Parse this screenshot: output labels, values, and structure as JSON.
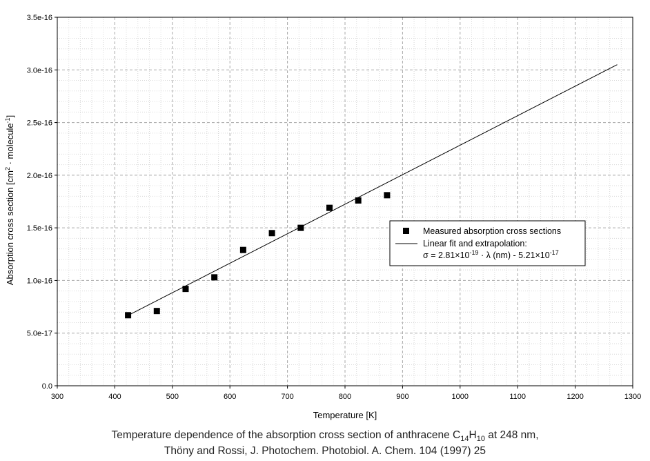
{
  "chart_data": {
    "type": "scatter",
    "xlabel": "Temperature [K]",
    "ylabel": {
      "prefix": "Absorption cross section [cm",
      "sup1": "2",
      "mid": " · molecule",
      "sup2": "-1",
      "suffix": "]"
    },
    "xlim": [
      300,
      1300
    ],
    "ylim": [
      0,
      3.5e-16
    ],
    "xticks": [
      "300",
      "400",
      "500",
      "600",
      "700",
      "800",
      "900",
      "1000",
      "1100",
      "1200",
      "1300"
    ],
    "yticks": [
      "0.0",
      "5.0e-17",
      "1.0e-16",
      "1.5e-16",
      "2.0e-16",
      "2.5e-16",
      "3.0e-16",
      "3.5e-16"
    ],
    "grid": true,
    "legend_position": "right",
    "series": [
      {
        "name": "Measured absorption cross sections",
        "marker": "square",
        "color": "#000000",
        "x": [
          423,
          473,
          523,
          573,
          623,
          673,
          723,
          773,
          823,
          873
        ],
        "y": [
          6.7e-17,
          7.1e-17,
          9.2e-17,
          1.03e-16,
          1.29e-16,
          1.45e-16,
          1.5e-16,
          1.69e-16,
          1.76e-16,
          1.81e-16
        ]
      },
      {
        "name_line1": "Linear fit and extrapolation:",
        "eq": {
          "sigma": "σ",
          "a": " = 2.81×10",
          "a_sup": "-19",
          "b": " · ",
          "lambda": "λ",
          "c": " (nm) - 5.21×10",
          "c_sup": "-17"
        },
        "line": true,
        "color": "#000000",
        "x": [
          423,
          1273
        ],
        "y": [
          6.68e-17,
          3.05e-16
        ]
      }
    ]
  },
  "caption": {
    "line1_pre": "Temperature dependence of the absorption cross section of anthracene C",
    "sub1": "14",
    "mid": "H",
    "sub2": "10",
    "line1_post": " at 248 nm,",
    "line2": "Thöny and Rossi, J. Photochem. Photobiol. A. Chem. 104 (1997) 25"
  }
}
